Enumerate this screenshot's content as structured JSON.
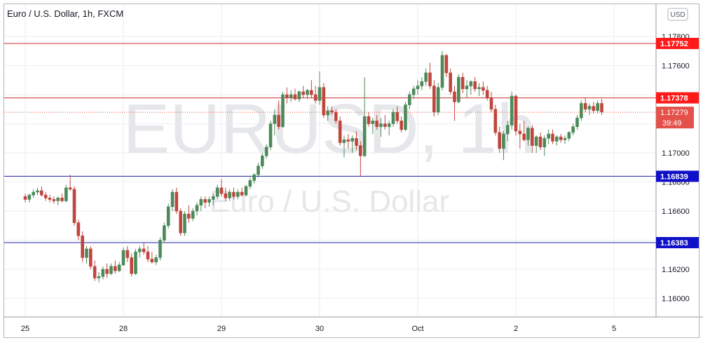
{
  "header": {
    "title": "Euro / U.S. Dollar, 1h, FXCM",
    "currency_badge": "USD"
  },
  "watermark": {
    "symbol": "EURUSD, 1h",
    "name": "Euro / U.S. Dollar"
  },
  "colors": {
    "up": "#4c8a5a",
    "down": "#c0463d",
    "resistance": "#c9302c",
    "resistance_label": "#ff1a1a",
    "support": "#1e1ea8",
    "support_label": "#1010c8",
    "grid": "#eceef2",
    "current_price": "#e4514a"
  },
  "chart_data": {
    "type": "candlestick",
    "title": "Euro / U.S. Dollar, 1h, FXCM",
    "ylim": [
      1.158,
      1.179
    ],
    "grid": true,
    "y_ticks": [
      "1.17800",
      "1.17600",
      "1.17400",
      "1.17200",
      "1.17000",
      "1.16800",
      "1.16600",
      "1.16400",
      "1.16200",
      "1.16000"
    ],
    "x_ticks": [
      {
        "label": "25",
        "x": 0
      },
      {
        "label": "28",
        "x": 24
      },
      {
        "label": "29",
        "x": 48
      },
      {
        "label": "30",
        "x": 72
      },
      {
        "label": "Oct",
        "x": 96
      },
      {
        "label": "2",
        "x": 120
      },
      {
        "label": "5",
        "x": 144
      }
    ],
    "levels": [
      {
        "name": "resistance",
        "value": "1.17752"
      },
      {
        "name": "resistance",
        "value": "1.17378"
      },
      {
        "name": "support",
        "value": "1.16839"
      },
      {
        "name": "support",
        "value": "1.16383"
      }
    ],
    "current_price": {
      "value": "1.17279",
      "countdown": "39:49"
    },
    "candles": [
      [
        1.167,
        1.1672,
        1.1666,
        1.1668
      ],
      [
        1.1668,
        1.1672,
        1.1666,
        1.1671
      ],
      [
        1.1671,
        1.1675,
        1.1669,
        1.1673
      ],
      [
        1.1673,
        1.1676,
        1.1671,
        1.1674
      ],
      [
        1.1674,
        1.1677,
        1.167,
        1.1671
      ],
      [
        1.1671,
        1.1673,
        1.1667,
        1.1669
      ],
      [
        1.1669,
        1.1671,
        1.1666,
        1.1668
      ],
      [
        1.1668,
        1.167,
        1.1665,
        1.1667
      ],
      [
        1.1667,
        1.167,
        1.1664,
        1.1669
      ],
      [
        1.1669,
        1.1672,
        1.1666,
        1.1667
      ],
      [
        1.1667,
        1.1678,
        1.1666,
        1.1676
      ],
      [
        1.1676,
        1.1685,
        1.1674,
        1.1675
      ],
      [
        1.1675,
        1.1677,
        1.165,
        1.1652
      ],
      [
        1.1652,
        1.1654,
        1.164,
        1.1643
      ],
      [
        1.1643,
        1.1646,
        1.1625,
        1.1628
      ],
      [
        1.1628,
        1.1636,
        1.1624,
        1.1634
      ],
      [
        1.1634,
        1.1636,
        1.162,
        1.1622
      ],
      [
        1.1622,
        1.1626,
        1.1612,
        1.1614
      ],
      [
        1.1614,
        1.1618,
        1.1611,
        1.1615
      ],
      [
        1.1615,
        1.1622,
        1.1613,
        1.162
      ],
      [
        1.162,
        1.1624,
        1.1614,
        1.1617
      ],
      [
        1.1617,
        1.1624,
        1.1616,
        1.1622
      ],
      [
        1.1622,
        1.1626,
        1.1617,
        1.1619
      ],
      [
        1.1619,
        1.1625,
        1.1618,
        1.1623
      ],
      [
        1.1623,
        1.1635,
        1.1622,
        1.1633
      ],
      [
        1.1633,
        1.1636,
        1.1625,
        1.1628
      ],
      [
        1.1628,
        1.1631,
        1.1615,
        1.1617
      ],
      [
        1.1617,
        1.1634,
        1.1616,
        1.1632
      ],
      [
        1.1632,
        1.1636,
        1.1628,
        1.1634
      ],
      [
        1.1634,
        1.1638,
        1.163,
        1.1632
      ],
      [
        1.1632,
        1.1636,
        1.1625,
        1.1627
      ],
      [
        1.1627,
        1.1632,
        1.1624,
        1.1625
      ],
      [
        1.1625,
        1.163,
        1.1623,
        1.1628
      ],
      [
        1.1628,
        1.1642,
        1.1626,
        1.164
      ],
      [
        1.164,
        1.1652,
        1.1638,
        1.165
      ],
      [
        1.165,
        1.1665,
        1.1648,
        1.1663
      ],
      [
        1.1663,
        1.1675,
        1.166,
        1.1673
      ],
      [
        1.1673,
        1.1676,
        1.1658,
        1.166
      ],
      [
        1.166,
        1.1662,
        1.1643,
        1.1645
      ],
      [
        1.1645,
        1.166,
        1.1643,
        1.1658
      ],
      [
        1.1658,
        1.1664,
        1.1652,
        1.1655
      ],
      [
        1.1655,
        1.1662,
        1.1653,
        1.166
      ],
      [
        1.166,
        1.1666,
        1.1657,
        1.1664
      ],
      [
        1.1664,
        1.167,
        1.166,
        1.1668
      ],
      [
        1.1668,
        1.167,
        1.1662,
        1.1666
      ],
      [
        1.1666,
        1.167,
        1.1663,
        1.1668
      ],
      [
        1.1668,
        1.1672,
        1.1664,
        1.167
      ],
      [
        1.167,
        1.1678,
        1.1668,
        1.1676
      ],
      [
        1.1676,
        1.1682,
        1.167,
        1.1672
      ],
      [
        1.1672,
        1.1676,
        1.1667,
        1.1669
      ],
      [
        1.1669,
        1.1675,
        1.1667,
        1.1673
      ],
      [
        1.1673,
        1.1676,
        1.1668,
        1.167
      ],
      [
        1.167,
        1.1675,
        1.1668,
        1.1673
      ],
      [
        1.1673,
        1.1676,
        1.167,
        1.1671
      ],
      [
        1.1671,
        1.1678,
        1.167,
        1.1677
      ],
      [
        1.1677,
        1.1683,
        1.1675,
        1.1681
      ],
      [
        1.1681,
        1.1686,
        1.1679,
        1.1685
      ],
      [
        1.1685,
        1.1693,
        1.1683,
        1.1691
      ],
      [
        1.1691,
        1.17,
        1.1689,
        1.1698
      ],
      [
        1.1698,
        1.1706,
        1.1696,
        1.1704
      ],
      [
        1.1704,
        1.1722,
        1.1702,
        1.172
      ],
      [
        1.172,
        1.173,
        1.1712,
        1.1726
      ],
      [
        1.1726,
        1.1736,
        1.1716,
        1.1718
      ],
      [
        1.1718,
        1.1742,
        1.1717,
        1.174
      ],
      [
        1.174,
        1.1745,
        1.1734,
        1.1738
      ],
      [
        1.1738,
        1.1743,
        1.1735,
        1.174
      ],
      [
        1.174,
        1.1744,
        1.1736,
        1.1737
      ],
      [
        1.1737,
        1.1743,
        1.1735,
        1.1742
      ],
      [
        1.1742,
        1.1746,
        1.1738,
        1.174
      ],
      [
        1.174,
        1.1744,
        1.1737,
        1.1743
      ],
      [
        1.1743,
        1.175,
        1.1738,
        1.174
      ],
      [
        1.174,
        1.1746,
        1.1734,
        1.1736
      ],
      [
        1.1736,
        1.1756,
        1.1733,
        1.1745
      ],
      [
        1.1745,
        1.1748,
        1.1724,
        1.1726
      ],
      [
        1.1726,
        1.1732,
        1.1722,
        1.1729
      ],
      [
        1.1729,
        1.1732,
        1.1726,
        1.1728
      ],
      [
        1.1728,
        1.173,
        1.172,
        1.1722
      ],
      [
        1.1722,
        1.1725,
        1.1705,
        1.1707
      ],
      [
        1.1707,
        1.1712,
        1.1697,
        1.1709
      ],
      [
        1.1709,
        1.1713,
        1.1703,
        1.1708
      ],
      [
        1.1708,
        1.1712,
        1.17,
        1.171
      ],
      [
        1.171,
        1.1715,
        1.1702,
        1.1705
      ],
      [
        1.1705,
        1.1708,
        1.1684,
        1.1698
      ],
      [
        1.1698,
        1.1752,
        1.1697,
        1.1725
      ],
      [
        1.1725,
        1.1728,
        1.1718,
        1.172
      ],
      [
        1.172,
        1.1724,
        1.1713,
        1.1722
      ],
      [
        1.1722,
        1.1726,
        1.1716,
        1.1718
      ],
      [
        1.1718,
        1.1724,
        1.1711,
        1.172
      ],
      [
        1.172,
        1.1726,
        1.1716,
        1.1718
      ],
      [
        1.1718,
        1.1722,
        1.1712,
        1.172
      ],
      [
        1.172,
        1.173,
        1.1718,
        1.1728
      ],
      [
        1.1728,
        1.1732,
        1.172,
        1.1722
      ],
      [
        1.1722,
        1.1725,
        1.1714,
        1.1716
      ],
      [
        1.1716,
        1.1735,
        1.1715,
        1.1733
      ],
      [
        1.1733,
        1.1742,
        1.173,
        1.174
      ],
      [
        1.174,
        1.1746,
        1.1737,
        1.1744
      ],
      [
        1.1744,
        1.175,
        1.174,
        1.1746
      ],
      [
        1.1746,
        1.1752,
        1.1743,
        1.1749
      ],
      [
        1.1749,
        1.1758,
        1.1746,
        1.1755
      ],
      [
        1.1755,
        1.1762,
        1.1744,
        1.1746
      ],
      [
        1.1746,
        1.175,
        1.1725,
        1.1728
      ],
      [
        1.1728,
        1.1748,
        1.1726,
        1.1745
      ],
      [
        1.1745,
        1.177,
        1.1743,
        1.1767
      ],
      [
        1.1767,
        1.1768,
        1.1752,
        1.1755
      ],
      [
        1.1755,
        1.1758,
        1.174,
        1.1742
      ],
      [
        1.1742,
        1.1746,
        1.1722,
        1.1735
      ],
      [
        1.1735,
        1.1754,
        1.1734,
        1.1752
      ],
      [
        1.1752,
        1.1755,
        1.1741,
        1.1744
      ],
      [
        1.1744,
        1.175,
        1.1738,
        1.1746
      ],
      [
        1.1746,
        1.175,
        1.174,
        1.1749
      ],
      [
        1.1749,
        1.1752,
        1.1742,
        1.1744
      ],
      [
        1.1744,
        1.1748,
        1.1739,
        1.1745
      ],
      [
        1.1745,
        1.1749,
        1.174,
        1.1743
      ],
      [
        1.1743,
        1.1746,
        1.1736,
        1.1738
      ],
      [
        1.1738,
        1.1742,
        1.1728,
        1.173
      ],
      [
        1.173,
        1.1733,
        1.1712,
        1.1714
      ],
      [
        1.1714,
        1.1718,
        1.17,
        1.1703
      ],
      [
        1.1703,
        1.1715,
        1.1695,
        1.1713
      ],
      [
        1.1713,
        1.1722,
        1.1708,
        1.1719
      ],
      [
        1.1719,
        1.1742,
        1.1716,
        1.1739
      ],
      [
        1.1739,
        1.174,
        1.1712,
        1.1715
      ],
      [
        1.1715,
        1.172,
        1.1703,
        1.1713
      ],
      [
        1.1713,
        1.1722,
        1.1708,
        1.1709
      ],
      [
        1.1709,
        1.1718,
        1.1705,
        1.1717
      ],
      [
        1.1717,
        1.1719,
        1.17,
        1.1705
      ],
      [
        1.1705,
        1.1712,
        1.17,
        1.1711
      ],
      [
        1.1711,
        1.1714,
        1.1702,
        1.1704
      ],
      [
        1.1704,
        1.1712,
        1.1698,
        1.171
      ],
      [
        1.171,
        1.1716,
        1.1706,
        1.1713
      ],
      [
        1.1713,
        1.1716,
        1.1706,
        1.1708
      ],
      [
        1.1708,
        1.1712,
        1.1705,
        1.1711
      ],
      [
        1.1711,
        1.1713,
        1.1707,
        1.1709
      ],
      [
        1.1709,
        1.1712,
        1.1706,
        1.171
      ],
      [
        1.171,
        1.1715,
        1.1708,
        1.1714
      ],
      [
        1.1714,
        1.172,
        1.1712,
        1.1718
      ],
      [
        1.1718,
        1.1726,
        1.1716,
        1.1724
      ],
      [
        1.1724,
        1.1736,
        1.1722,
        1.1734
      ],
      [
        1.1734,
        1.1738,
        1.1728,
        1.173
      ],
      [
        1.173,
        1.1734,
        1.1726,
        1.1732
      ],
      [
        1.1732,
        1.1735,
        1.1727,
        1.1729
      ],
      [
        1.1729,
        1.1736,
        1.1727,
        1.1734
      ],
      [
        1.1734,
        1.1737,
        1.1726,
        1.1728
      ]
    ]
  }
}
